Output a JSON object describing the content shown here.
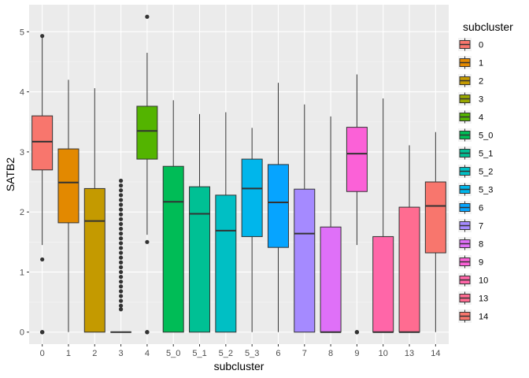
{
  "chart_data": {
    "type": "box",
    "xlabel": "subcluster",
    "ylabel": "SATB2",
    "ylim": [
      -0.2,
      5.45
    ],
    "yticks": [
      0,
      1,
      2,
      3,
      4,
      5
    ],
    "grid": true,
    "legend": {
      "title": "subcluster",
      "position": "right"
    },
    "categories": [
      "0",
      "1",
      "2",
      "3",
      "4",
      "5_0",
      "5_1",
      "5_2",
      "5_3",
      "6",
      "7",
      "8",
      "9",
      "10",
      "13",
      "14"
    ],
    "colors": [
      "#F8766D",
      "#E38900",
      "#C49A00",
      "#99A800",
      "#53B400",
      "#00BC56",
      "#00C094",
      "#00BFC4",
      "#00B6EB",
      "#06A4FF",
      "#A58AFF",
      "#DF70F8",
      "#FB61D7",
      "#FF66A8",
      "#FF6C91",
      "#F8766D"
    ],
    "boxes": [
      {
        "q1": 2.7,
        "median": 3.17,
        "q3": 3.6,
        "whisker_low": 1.45,
        "whisker_high": 4.9,
        "outliers": [
          4.93,
          1.21,
          0,
          0,
          0
        ]
      },
      {
        "q1": 1.82,
        "median": 2.49,
        "q3": 3.05,
        "whisker_low": 0,
        "whisker_high": 4.2,
        "outliers": []
      },
      {
        "q1": 0,
        "median": 1.85,
        "q3": 2.39,
        "whisker_low": 0,
        "whisker_high": 4.06,
        "outliers": []
      },
      {
        "q1": 0,
        "median": 0,
        "q3": 0,
        "whisker_low": 0,
        "whisker_high": 0,
        "outliers": [
          2.52,
          2.44,
          2.36,
          2.28,
          2.2,
          2.12,
          2.04,
          1.96,
          1.88,
          1.8,
          1.72,
          1.64,
          1.56,
          1.48,
          1.4,
          1.32,
          1.24,
          1.16,
          1.08,
          1.0,
          0.92,
          0.84,
          0.76,
          0.68,
          0.6,
          0.52,
          0.44,
          0.38
        ]
      },
      {
        "q1": 2.88,
        "median": 3.35,
        "q3": 3.76,
        "whisker_low": 1.62,
        "whisker_high": 4.65,
        "outliers": [
          5.25,
          1.5,
          0,
          0,
          0
        ]
      },
      {
        "q1": 0,
        "median": 2.17,
        "q3": 2.76,
        "whisker_low": 0,
        "whisker_high": 3.86,
        "outliers": []
      },
      {
        "q1": 0,
        "median": 1.97,
        "q3": 2.42,
        "whisker_low": 0,
        "whisker_high": 3.63,
        "outliers": []
      },
      {
        "q1": 0,
        "median": 1.69,
        "q3": 2.28,
        "whisker_low": 0,
        "whisker_high": 3.66,
        "outliers": []
      },
      {
        "q1": 1.59,
        "median": 2.39,
        "q3": 2.88,
        "whisker_low": 0,
        "whisker_high": 3.4,
        "outliers": []
      },
      {
        "q1": 1.41,
        "median": 2.16,
        "q3": 2.79,
        "whisker_low": 0,
        "whisker_high": 4.15,
        "outliers": []
      },
      {
        "q1": 0,
        "median": 1.64,
        "q3": 2.38,
        "whisker_low": 0,
        "whisker_high": 3.79,
        "outliers": []
      },
      {
        "q1": 0,
        "median": 0,
        "q3": 1.75,
        "whisker_low": 0,
        "whisker_high": 3.59,
        "outliers": []
      },
      {
        "q1": 2.34,
        "median": 2.97,
        "q3": 3.41,
        "whisker_low": 1.45,
        "whisker_high": 4.29,
        "outliers": [
          0,
          0,
          0
        ]
      },
      {
        "q1": 0,
        "median": 0,
        "q3": 1.59,
        "whisker_low": 0,
        "whisker_high": 3.89,
        "outliers": []
      },
      {
        "q1": 0,
        "median": 0,
        "q3": 2.08,
        "whisker_low": 0,
        "whisker_high": 3.11,
        "outliers": []
      },
      {
        "q1": 1.32,
        "median": 2.1,
        "q3": 2.5,
        "whisker_low": 0,
        "whisker_high": 3.33,
        "outliers": []
      }
    ]
  }
}
